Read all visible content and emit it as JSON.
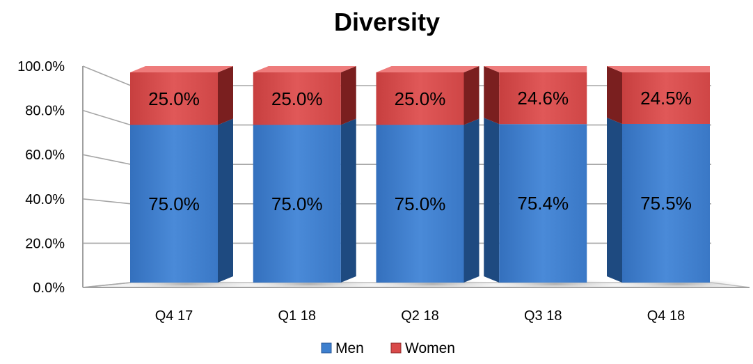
{
  "chart_data": {
    "type": "bar",
    "stacked": true,
    "title": "Diversity",
    "categories": [
      "Q4 17",
      "Q1 18",
      "Q2 18",
      "Q3 18",
      "Q4 18"
    ],
    "series": [
      {
        "name": "Men",
        "values": [
          75.0,
          75.0,
          75.0,
          75.4,
          75.5
        ],
        "labels": [
          "75.0%",
          "75.0%",
          "75.0%",
          "75.4%",
          "75.5%"
        ],
        "color": "#3d7fce"
      },
      {
        "name": "Women",
        "values": [
          25.0,
          25.0,
          25.0,
          24.6,
          24.5
        ],
        "labels": [
          "25.0%",
          "25.0%",
          "25.0%",
          "24.6%",
          "24.5%"
        ],
        "color": "#d94a4a"
      }
    ],
    "y_ticks": [
      "0.0%",
      "20.0%",
      "40.0%",
      "60.0%",
      "80.0%",
      "100.0%"
    ],
    "ylim": [
      0,
      100
    ],
    "grid": true,
    "legend_position": "bottom",
    "xlabel": "",
    "ylabel": ""
  }
}
